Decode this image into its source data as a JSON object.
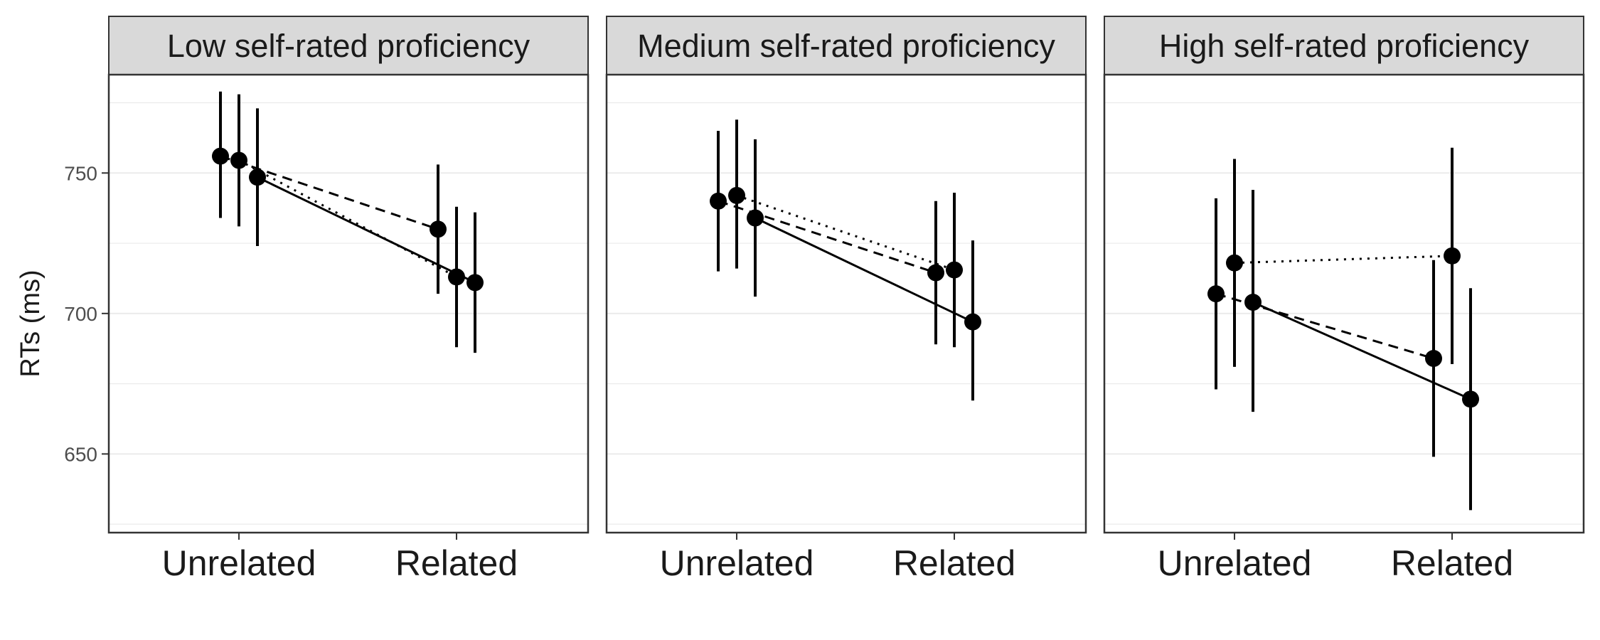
{
  "chart_data": {
    "type": "line",
    "ylabel": "RTs (ms)",
    "xlabel": "",
    "categories": [
      "Unrelated",
      "Related"
    ],
    "ylim": [
      622,
      785
    ],
    "yticks": [
      650,
      700,
      750
    ],
    "grid": true,
    "legend": "none",
    "colors": {
      "ink": "#000000",
      "strip_fill": "#d9d9d9",
      "grid": "#ebebeb",
      "border": "#333333"
    },
    "panels": [
      {
        "title": "Low self-rated proficiency",
        "series": [
          {
            "linestyle": "dashed",
            "points": [
              {
                "x": "Unrelated",
                "y": 756,
                "lo": 734,
                "hi": 779
              },
              {
                "x": "Related",
                "y": 730,
                "lo": 707,
                "hi": 753
              }
            ]
          },
          {
            "linestyle": "dotted",
            "points": [
              {
                "x": "Unrelated",
                "y": 754.5,
                "lo": 731,
                "hi": 778
              },
              {
                "x": "Related",
                "y": 713,
                "lo": 688,
                "hi": 738
              }
            ]
          },
          {
            "linestyle": "solid",
            "points": [
              {
                "x": "Unrelated",
                "y": 748.5,
                "lo": 724,
                "hi": 773
              },
              {
                "x": "Related",
                "y": 711,
                "lo": 686,
                "hi": 736
              }
            ]
          }
        ]
      },
      {
        "title": "Medium self-rated proficiency",
        "series": [
          {
            "linestyle": "dashed",
            "points": [
              {
                "x": "Unrelated",
                "y": 740,
                "lo": 715,
                "hi": 765
              },
              {
                "x": "Related",
                "y": 714.5,
                "lo": 689,
                "hi": 740
              }
            ]
          },
          {
            "linestyle": "dotted",
            "points": [
              {
                "x": "Unrelated",
                "y": 742,
                "lo": 716,
                "hi": 769
              },
              {
                "x": "Related",
                "y": 715.5,
                "lo": 688,
                "hi": 743
              }
            ]
          },
          {
            "linestyle": "solid",
            "points": [
              {
                "x": "Unrelated",
                "y": 734,
                "lo": 706,
                "hi": 762
              },
              {
                "x": "Related",
                "y": 697,
                "lo": 669,
                "hi": 726
              }
            ]
          }
        ]
      },
      {
        "title": "High self-rated proficiency",
        "series": [
          {
            "linestyle": "dashed",
            "points": [
              {
                "x": "Unrelated",
                "y": 707,
                "lo": 673,
                "hi": 741
              },
              {
                "x": "Related",
                "y": 684,
                "lo": 649,
                "hi": 719
              }
            ]
          },
          {
            "linestyle": "dotted",
            "points": [
              {
                "x": "Unrelated",
                "y": 718,
                "lo": 681,
                "hi": 755
              },
              {
                "x": "Related",
                "y": 720.5,
                "lo": 682,
                "hi": 759
              }
            ]
          },
          {
            "linestyle": "solid",
            "points": [
              {
                "x": "Unrelated",
                "y": 704,
                "lo": 665,
                "hi": 744
              },
              {
                "x": "Related",
                "y": 669.5,
                "lo": 630,
                "hi": 709
              }
            ]
          }
        ]
      }
    ]
  }
}
